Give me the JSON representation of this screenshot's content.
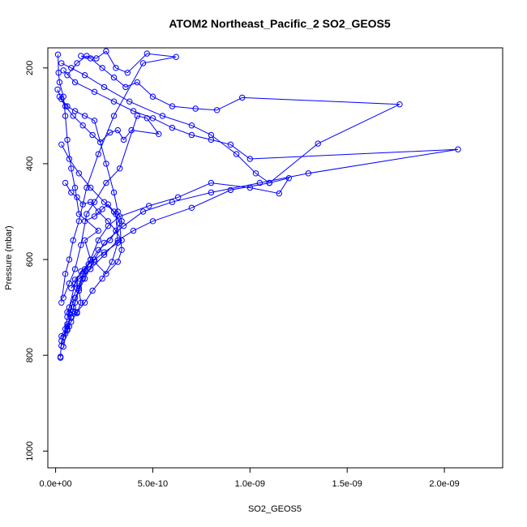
{
  "chart_data": {
    "type": "line",
    "title": "ATOM2 Northeast_Pacific_2 SO2_GEOS5",
    "xlabel": "SO2_GEOS5",
    "ylabel": "Pressure (mbar)",
    "xlim": [
      -4e-11,
      2.3e-09
    ],
    "ylim": [
      1035,
      158
    ],
    "y_reversed": true,
    "x_ticks": [
      {
        "value": 0,
        "label": "0.0e+00"
      },
      {
        "value": 5e-10,
        "label": "5.0e-10"
      },
      {
        "value": 1e-09,
        "label": "1.0e-09"
      },
      {
        "value": 1.5e-09,
        "label": "1.5e-09"
      },
      {
        "value": 2e-09,
        "label": "2.0e-09"
      }
    ],
    "y_ticks": [
      {
        "value": 200,
        "label": "200"
      },
      {
        "value": 400,
        "label": "400"
      },
      {
        "value": 600,
        "label": "600"
      },
      {
        "value": 800,
        "label": "800"
      },
      {
        "value": 1000,
        "label": "1000"
      }
    ],
    "grid": false,
    "legend": "none",
    "color": "#0000ff",
    "marker": "open-circle",
    "series": [
      {
        "x": [
          2.5e-11,
          2.5e-11,
          3e-11,
          4e-11,
          3e-11,
          5e-11,
          6e-11,
          7e-11,
          6e-11,
          8e-11,
          7e-11,
          9e-11,
          1e-10,
          1.1e-10,
          1.3e-10,
          1.2e-10,
          1e-10,
          1.5e-10,
          1.8e-10,
          1.5e-10,
          2.2e-10,
          1.2e-10,
          1e-10,
          8e-11,
          6e-11,
          5e-11,
          4e-11,
          2e-11,
          1.5e-11,
          1.2e-11
        ],
        "y": [
          805,
          803,
          770,
          762,
          760,
          755,
          748,
          740,
          735,
          722,
          712,
          708,
          710,
          712,
          690,
          665,
          642,
          620,
          600,
          560,
          540,
          505,
          450,
          410,
          350,
          300,
          260,
          230,
          210,
          172
        ]
      },
      {
        "x": [
          3e-11,
          8e-11,
          1.5e-10,
          2.5e-10,
          3.8e-10,
          5.5e-10,
          7e-10,
          8e-10,
          9.3e-10,
          1.03e-09,
          1.1e-09,
          1.2e-09,
          1.15e-09,
          1e-09,
          8e-10,
          6.3e-10,
          4.8e-10,
          3.3e-10,
          2.7e-10,
          2.2e-10,
          1.8e-10,
          1.4e-10,
          1.2e-10,
          1e-10,
          8e-11,
          6e-11,
          4e-11
        ],
        "y": [
          190,
          200,
          215,
          240,
          270,
          300,
          320,
          340,
          380,
          420,
          440,
          430,
          462,
          450,
          440,
          470,
          488,
          510,
          530,
          560,
          600,
          630,
          660,
          690,
          720,
          740,
          762
        ]
      },
      {
        "x": [
          1.3e-10,
          1.8e-10,
          2.4e-10,
          3e-10,
          3.6e-10,
          4.2e-10,
          5e-10,
          6e-10,
          7.2e-10,
          8.3e-10,
          9.6e-10,
          1.77e-09,
          1.35e-09,
          1.1e-09,
          9e-10,
          7e-10,
          5e-10,
          4e-10,
          3.2e-10,
          2.5e-10,
          1.8e-10,
          1.2e-10,
          8e-11
        ],
        "y": [
          175,
          180,
          200,
          220,
          240,
          230,
          260,
          280,
          285,
          288,
          262,
          276,
          358,
          440,
          455,
          492,
          520,
          540,
          560,
          590,
          620,
          640,
          660
        ]
      },
      {
        "x": [
          4e-11,
          1e-10,
          2e-10,
          3e-10,
          4e-10,
          5e-10,
          6e-10,
          7e-10,
          8e-10,
          9e-10,
          1e-09,
          2.07e-09,
          1.3e-09,
          1.05e-09,
          8e-10,
          6e-10,
          4.5e-10,
          3.5e-10,
          2.5e-10,
          2e-10,
          1.5e-10,
          1e-10,
          6e-11
        ],
        "y": [
          205,
          230,
          250,
          270,
          290,
          305,
          325,
          340,
          350,
          360,
          390,
          370,
          420,
          440,
          460,
          480,
          500,
          530,
          565,
          600,
          640,
          680,
          720
        ]
      },
      {
        "x": [
          6e-11,
          1.1e-10,
          1.6e-10,
          2.1e-10,
          2.6e-10,
          3.1e-10,
          3.7e-10,
          4.7e-10,
          6.2e-10,
          4.5e-10,
          3e-10,
          2.2e-10,
          1.6e-10,
          1.2e-10,
          9e-11,
          7e-11,
          5e-11,
          3e-11
        ],
        "y": [
          215,
          190,
          175,
          180,
          165,
          200,
          210,
          170,
          177,
          190,
          300,
          380,
          450,
          520,
          560,
          600,
          630,
          690
        ]
      },
      {
        "x": [
          2e-11,
          5e-11,
          9e-11,
          1.4e-10,
          1.9e-10,
          2.3e-10,
          2.8e-10,
          3.2e-10,
          3.5e-10,
          3.9e-10,
          5.3e-10,
          4.7e-10,
          4.2e-10,
          3.3e-10,
          2.6e-10,
          2e-10,
          1.6e-10,
          1.3e-10,
          1e-10,
          7e-11,
          4e-11
        ],
        "y": [
          260,
          280,
          300,
          320,
          340,
          355,
          335,
          330,
          350,
          330,
          338,
          305,
          300,
          410,
          440,
          480,
          505,
          570,
          620,
          650,
          680
        ]
      },
      {
        "x": [
          1e-11,
          3e-11,
          6e-11,
          1e-10,
          1.5e-10,
          2e-10,
          2.6e-10,
          3e-10,
          3.2e-10,
          3.4e-10,
          2.8e-10,
          2.2e-10,
          1.7e-10,
          1.3e-10,
          1e-10,
          7e-11,
          5e-11,
          3e-11
        ],
        "y": [
          245,
          265,
          280,
          290,
          300,
          310,
          400,
          460,
          500,
          520,
          560,
          580,
          610,
          625,
          650,
          700,
          745,
          780
        ]
      },
      {
        "x": [
          3e-11,
          7e-11,
          1.2e-10,
          1.8e-10,
          2.5e-10,
          3.1e-10,
          3.2e-10,
          2.9e-10,
          2.4e-10,
          1.9e-10,
          1.5e-10,
          1.1e-10,
          8e-11,
          6e-11,
          4e-11
        ],
        "y": [
          360,
          390,
          420,
          450,
          480,
          505,
          565,
          605,
          640,
          665,
          690,
          710,
          730,
          745,
          782
        ]
      },
      {
        "x": [
          1.5e-10,
          2e-10,
          2.4e-10,
          2.7e-10,
          3e-10,
          3.3e-10,
          3.4e-10,
          3.2e-10,
          2.6e-10,
          2e-10,
          1.4e-10,
          9e-11
        ],
        "y": [
          520,
          510,
          495,
          485,
          500,
          525,
          580,
          605,
          630,
          605,
          640,
          700
        ]
      },
      {
        "x": [
          5e-11,
          8e-11,
          1.1e-10,
          1.4e-10,
          1.8e-10,
          2.2e-10,
          2.7e-10,
          3.1e-10,
          3.4e-10,
          2.5e-10,
          1.7e-10,
          1.1e-10,
          6e-11
        ],
        "y": [
          440,
          460,
          470,
          485,
          480,
          500,
          520,
          540,
          560,
          585,
          610,
          660,
          710
        ]
      }
    ]
  }
}
